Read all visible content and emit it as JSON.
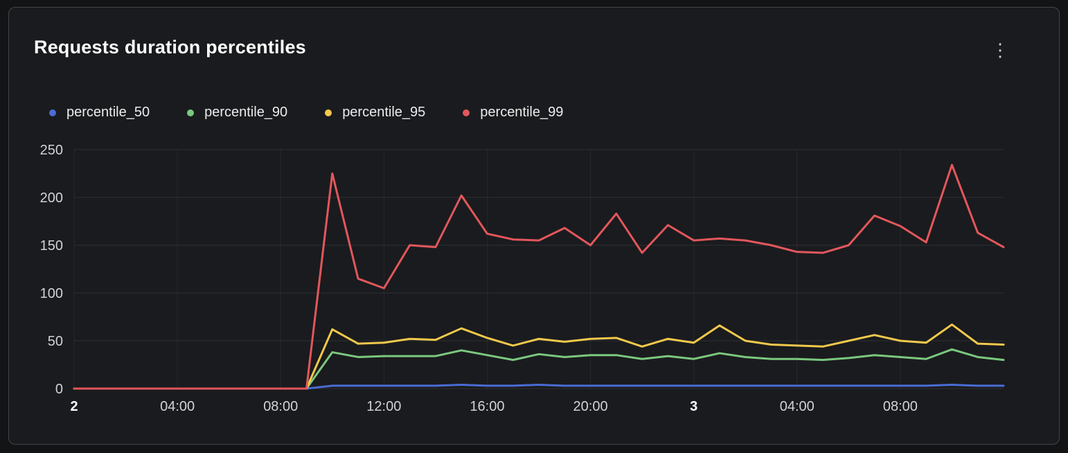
{
  "panel": {
    "menu_icon": "kebab-menu"
  },
  "chart_data": {
    "type": "line",
    "title": "Requests duration percentiles",
    "xlabel": "",
    "ylabel": "",
    "grid": true,
    "legend_position": "top",
    "ylim": [
      0,
      250
    ],
    "yticks": [
      0,
      50,
      100,
      150,
      200,
      250
    ],
    "xlim": [
      0,
      36
    ],
    "x": [
      0,
      1,
      2,
      3,
      4,
      5,
      6,
      7,
      8,
      9,
      10,
      11,
      12,
      13,
      14,
      15,
      16,
      17,
      18,
      19,
      20,
      21,
      22,
      23,
      24,
      25,
      26,
      27,
      28,
      29,
      30,
      31,
      32,
      33,
      34,
      35,
      36
    ],
    "xticks": [
      {
        "hour": 0,
        "label": "2",
        "bold": true
      },
      {
        "hour": 4,
        "label": "04:00",
        "bold": false
      },
      {
        "hour": 8,
        "label": "08:00",
        "bold": false
      },
      {
        "hour": 12,
        "label": "12:00",
        "bold": false
      },
      {
        "hour": 16,
        "label": "16:00",
        "bold": false
      },
      {
        "hour": 20,
        "label": "20:00",
        "bold": false
      },
      {
        "hour": 24,
        "label": "3",
        "bold": true
      },
      {
        "hour": 28,
        "label": "04:00",
        "bold": false
      },
      {
        "hour": 32,
        "label": "08:00",
        "bold": false
      }
    ],
    "series": [
      {
        "name": "percentile_50",
        "color": "#4a6cd4",
        "values": [
          0,
          0,
          0,
          0,
          0,
          0,
          0,
          0,
          0,
          0,
          3,
          3,
          3,
          3,
          3,
          4,
          3,
          3,
          4,
          3,
          3,
          3,
          3,
          3,
          3,
          3,
          3,
          3,
          3,
          3,
          3,
          3,
          3,
          3,
          4,
          3,
          3
        ]
      },
      {
        "name": "percentile_90",
        "color": "#7bc87f",
        "values": [
          0,
          0,
          0,
          0,
          0,
          0,
          0,
          0,
          0,
          0,
          38,
          33,
          34,
          34,
          34,
          40,
          35,
          30,
          36,
          33,
          35,
          35,
          31,
          34,
          31,
          37,
          33,
          31,
          31,
          30,
          32,
          35,
          33,
          31,
          41,
          33,
          30
        ]
      },
      {
        "name": "percentile_95",
        "color": "#f2c94c",
        "values": [
          0,
          0,
          0,
          0,
          0,
          0,
          0,
          0,
          0,
          0,
          62,
          47,
          48,
          52,
          51,
          63,
          53,
          45,
          52,
          49,
          52,
          53,
          44,
          52,
          48,
          66,
          50,
          46,
          45,
          44,
          50,
          56,
          50,
          48,
          67,
          47,
          46
        ]
      },
      {
        "name": "percentile_99",
        "color": "#e2575c",
        "values": [
          0,
          0,
          0,
          0,
          0,
          0,
          0,
          0,
          0,
          0,
          225,
          115,
          105,
          150,
          148,
          202,
          162,
          156,
          155,
          168,
          150,
          183,
          142,
          171,
          155,
          157,
          155,
          150,
          143,
          142,
          150,
          181,
          170,
          153,
          234,
          163,
          148
        ]
      }
    ]
  }
}
